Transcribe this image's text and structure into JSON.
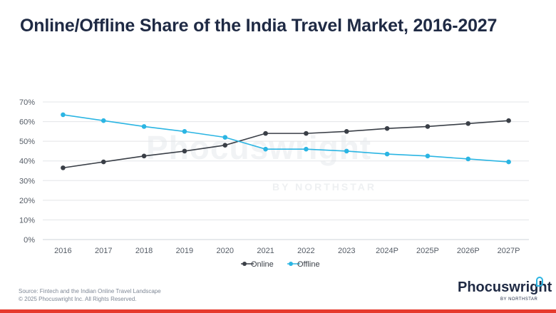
{
  "title": "Online/Offline Share of the India Travel Market, 2016-2027",
  "watermark": {
    "main": "Phocuswright",
    "sub": "BY NORTHSTAR"
  },
  "footer": {
    "source": "Source: Fintech and the Indian Online Travel Landscape",
    "copyright": "© 2025 Phocuswright Inc. All Rights Reserved."
  },
  "brand": {
    "name": "Phocuswright",
    "sub": "BY NORTHSTAR"
  },
  "colors": {
    "online": "#3a3f47",
    "offline": "#2bb5e3",
    "grid": "#e3e5e8",
    "axis_text": "#555c66",
    "accent_bar": "#e63b2e"
  },
  "chart_data": {
    "type": "line",
    "title": "Online/Offline Share of the India Travel Market, 2016-2027",
    "categories": [
      "2016",
      "2017",
      "2018",
      "2019",
      "2020",
      "2021",
      "2022",
      "2023",
      "2024P",
      "2025P",
      "2026P",
      "2027P"
    ],
    "series": [
      {
        "name": "Online",
        "color": "#3a3f47",
        "values": [
          36.5,
          39.5,
          42.5,
          45,
          48,
          54,
          54,
          55,
          56.5,
          57.5,
          59,
          60.5
        ]
      },
      {
        "name": "Offline",
        "color": "#2bb5e3",
        "values": [
          63.5,
          60.5,
          57.5,
          55,
          52,
          46,
          46,
          45,
          43.5,
          42.5,
          41,
          39.5
        ]
      }
    ],
    "y_ticks": [
      "0%",
      "10%",
      "20%",
      "30%",
      "40%",
      "50%",
      "60%",
      "70%"
    ],
    "ylim": [
      0,
      70
    ],
    "grid": true,
    "legend_position": "bottom-center",
    "xlabel": "",
    "ylabel": ""
  }
}
